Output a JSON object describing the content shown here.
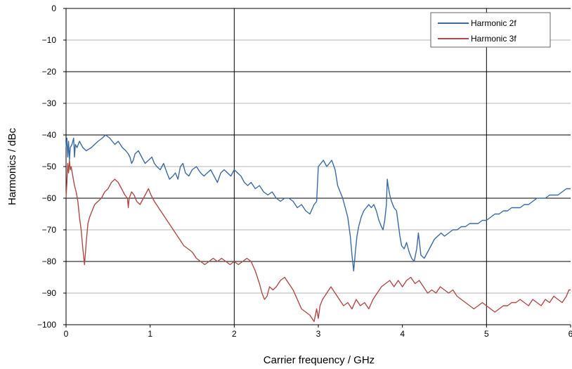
{
  "chart_data": {
    "type": "line",
    "title": "",
    "xlabel": "Carrier frequency / GHz",
    "ylabel": "Harmonics / dBc",
    "xlim": [
      0,
      6
    ],
    "ylim": [
      -100,
      0
    ],
    "x_ticks": [
      "0",
      "1",
      "2",
      "3",
      "4",
      "5",
      "6"
    ],
    "y_ticks": [
      "0",
      "−10",
      "−20",
      "−30",
      "−40",
      "−50",
      "−60",
      "−70",
      "−80",
      "−90",
      "−100"
    ],
    "grid": true,
    "legend_position": "top-right",
    "series": [
      {
        "name": "Harmonic 2f",
        "color": "#3a6aa6",
        "points": [
          [
            0.0,
            -44
          ],
          [
            0.01,
            -41
          ],
          [
            0.02,
            -47
          ],
          [
            0.03,
            -42
          ],
          [
            0.04,
            -48
          ],
          [
            0.05,
            -44
          ],
          [
            0.07,
            -43
          ],
          [
            0.09,
            -41
          ],
          [
            0.1,
            -47
          ],
          [
            0.11,
            -43
          ],
          [
            0.13,
            -44
          ],
          [
            0.16,
            -42
          ],
          [
            0.2,
            -44
          ],
          [
            0.24,
            -45
          ],
          [
            0.3,
            -44
          ],
          [
            0.34,
            -43
          ],
          [
            0.38,
            -42
          ],
          [
            0.43,
            -41
          ],
          [
            0.47,
            -40
          ],
          [
            0.52,
            -41
          ],
          [
            0.58,
            -43
          ],
          [
            0.62,
            -42
          ],
          [
            0.67,
            -44
          ],
          [
            0.71,
            -45
          ],
          [
            0.74,
            -46
          ],
          [
            0.76,
            -47
          ],
          [
            0.78,
            -49
          ],
          [
            0.8,
            -48
          ],
          [
            0.82,
            -46
          ],
          [
            0.86,
            -45
          ],
          [
            0.9,
            -47
          ],
          [
            0.94,
            -49
          ],
          [
            0.98,
            -48
          ],
          [
            1.02,
            -47
          ],
          [
            1.05,
            -49
          ],
          [
            1.08,
            -50
          ],
          [
            1.12,
            -51
          ],
          [
            1.16,
            -49
          ],
          [
            1.2,
            -52
          ],
          [
            1.23,
            -54
          ],
          [
            1.27,
            -53
          ],
          [
            1.3,
            -52
          ],
          [
            1.33,
            -54
          ],
          [
            1.36,
            -50
          ],
          [
            1.39,
            -49
          ],
          [
            1.42,
            -52
          ],
          [
            1.46,
            -53
          ],
          [
            1.5,
            -51
          ],
          [
            1.55,
            -50
          ],
          [
            1.6,
            -52
          ],
          [
            1.64,
            -53
          ],
          [
            1.68,
            -52
          ],
          [
            1.72,
            -51
          ],
          [
            1.76,
            -53
          ],
          [
            1.8,
            -55
          ],
          [
            1.84,
            -52
          ],
          [
            1.88,
            -51
          ],
          [
            1.92,
            -52
          ],
          [
            1.96,
            -53
          ],
          [
            2.0,
            -51
          ],
          [
            2.04,
            -52
          ],
          [
            2.08,
            -53
          ],
          [
            2.12,
            -55
          ],
          [
            2.16,
            -56
          ],
          [
            2.2,
            -55
          ],
          [
            2.25,
            -57
          ],
          [
            2.3,
            -56
          ],
          [
            2.35,
            -58
          ],
          [
            2.4,
            -59
          ],
          [
            2.45,
            -58
          ],
          [
            2.5,
            -60
          ],
          [
            2.55,
            -61
          ],
          [
            2.6,
            -60
          ],
          [
            2.65,
            -60
          ],
          [
            2.7,
            -61
          ],
          [
            2.75,
            -63
          ],
          [
            2.8,
            -62
          ],
          [
            2.85,
            -64
          ],
          [
            2.9,
            -65
          ],
          [
            2.95,
            -62
          ],
          [
            2.98,
            -61
          ],
          [
            3.0,
            -50
          ],
          [
            3.03,
            -49
          ],
          [
            3.06,
            -48
          ],
          [
            3.1,
            -50
          ],
          [
            3.13,
            -49
          ],
          [
            3.16,
            -48
          ],
          [
            3.2,
            -51
          ],
          [
            3.23,
            -56
          ],
          [
            3.26,
            -58
          ],
          [
            3.29,
            -60
          ],
          [
            3.32,
            -63
          ],
          [
            3.35,
            -66
          ],
          [
            3.38,
            -72
          ],
          [
            3.4,
            -78
          ],
          [
            3.42,
            -83
          ],
          [
            3.44,
            -77
          ],
          [
            3.46,
            -72
          ],
          [
            3.48,
            -69
          ],
          [
            3.51,
            -66
          ],
          [
            3.54,
            -64
          ],
          [
            3.57,
            -63
          ],
          [
            3.6,
            -62
          ],
          [
            3.63,
            -63
          ],
          [
            3.66,
            -62
          ],
          [
            3.69,
            -64
          ],
          [
            3.72,
            -67
          ],
          [
            3.75,
            -69
          ],
          [
            3.77,
            -70
          ],
          [
            3.79,
            -67
          ],
          [
            3.81,
            -62
          ],
          [
            3.82,
            -54
          ],
          [
            3.83,
            -56
          ],
          [
            3.85,
            -59
          ],
          [
            3.87,
            -61
          ],
          [
            3.9,
            -63
          ],
          [
            3.93,
            -64
          ],
          [
            3.95,
            -68
          ],
          [
            3.97,
            -72
          ],
          [
            3.99,
            -75
          ],
          [
            4.02,
            -76
          ],
          [
            4.05,
            -74
          ],
          [
            4.08,
            -77
          ],
          [
            4.11,
            -79
          ],
          [
            4.14,
            -80
          ],
          [
            4.17,
            -76
          ],
          [
            4.19,
            -71
          ],
          [
            4.22,
            -78
          ],
          [
            4.26,
            -79
          ],
          [
            4.3,
            -77
          ],
          [
            4.34,
            -75
          ],
          [
            4.38,
            -73
          ],
          [
            4.42,
            -72
          ],
          [
            4.46,
            -71
          ],
          [
            4.5,
            -72
          ],
          [
            4.55,
            -71
          ],
          [
            4.6,
            -70
          ],
          [
            4.65,
            -70
          ],
          [
            4.7,
            -69
          ],
          [
            4.75,
            -69
          ],
          [
            4.8,
            -68
          ],
          [
            4.85,
            -68
          ],
          [
            4.9,
            -68
          ],
          [
            4.95,
            -67
          ],
          [
            5.0,
            -67
          ],
          [
            5.05,
            -66
          ],
          [
            5.1,
            -65
          ],
          [
            5.15,
            -65
          ],
          [
            5.2,
            -64
          ],
          [
            5.25,
            -64
          ],
          [
            5.3,
            -63
          ],
          [
            5.35,
            -63
          ],
          [
            5.4,
            -63
          ],
          [
            5.45,
            -62
          ],
          [
            5.5,
            -62
          ],
          [
            5.55,
            -61
          ],
          [
            5.6,
            -60
          ],
          [
            5.65,
            -60
          ],
          [
            5.7,
            -60
          ],
          [
            5.75,
            -59
          ],
          [
            5.8,
            -59
          ],
          [
            5.85,
            -59
          ],
          [
            5.9,
            -58
          ],
          [
            5.95,
            -57
          ],
          [
            6.0,
            -57
          ]
        ]
      },
      {
        "name": "Harmonic 3f",
        "color": "#b04a46",
        "points": [
          [
            0.0,
            -60
          ],
          [
            0.01,
            -55
          ],
          [
            0.02,
            -49
          ],
          [
            0.03,
            -52
          ],
          [
            0.04,
            -48
          ],
          [
            0.05,
            -51
          ],
          [
            0.06,
            -50
          ],
          [
            0.08,
            -53
          ],
          [
            0.1,
            -56
          ],
          [
            0.12,
            -58
          ],
          [
            0.14,
            -61
          ],
          [
            0.16,
            -66
          ],
          [
            0.18,
            -70
          ],
          [
            0.2,
            -76
          ],
          [
            0.22,
            -81
          ],
          [
            0.24,
            -74
          ],
          [
            0.26,
            -68
          ],
          [
            0.28,
            -66
          ],
          [
            0.31,
            -64
          ],
          [
            0.34,
            -62
          ],
          [
            0.38,
            -61
          ],
          [
            0.42,
            -60
          ],
          [
            0.46,
            -58
          ],
          [
            0.5,
            -57
          ],
          [
            0.54,
            -55
          ],
          [
            0.58,
            -54
          ],
          [
            0.62,
            -55
          ],
          [
            0.66,
            -57
          ],
          [
            0.7,
            -59
          ],
          [
            0.73,
            -60
          ],
          [
            0.74,
            -63
          ],
          [
            0.75,
            -60
          ],
          [
            0.78,
            -58
          ],
          [
            0.81,
            -59
          ],
          [
            0.84,
            -61
          ],
          [
            0.88,
            -62
          ],
          [
            0.92,
            -60
          ],
          [
            0.96,
            -58
          ],
          [
            0.98,
            -57
          ],
          [
            1.01,
            -59
          ],
          [
            1.05,
            -61
          ],
          [
            1.1,
            -63
          ],
          [
            1.15,
            -65
          ],
          [
            1.2,
            -67
          ],
          [
            1.25,
            -69
          ],
          [
            1.3,
            -71
          ],
          [
            1.35,
            -73
          ],
          [
            1.4,
            -75
          ],
          [
            1.45,
            -76
          ],
          [
            1.5,
            -77
          ],
          [
            1.55,
            -79
          ],
          [
            1.6,
            -80
          ],
          [
            1.65,
            -81
          ],
          [
            1.7,
            -80
          ],
          [
            1.75,
            -79
          ],
          [
            1.8,
            -80
          ],
          [
            1.85,
            -79
          ],
          [
            1.9,
            -80
          ],
          [
            1.95,
            -81
          ],
          [
            2.0,
            -80
          ],
          [
            2.05,
            -81
          ],
          [
            2.1,
            -80
          ],
          [
            2.15,
            -79
          ],
          [
            2.2,
            -80
          ],
          [
            2.25,
            -83
          ],
          [
            2.3,
            -87
          ],
          [
            2.33,
            -90
          ],
          [
            2.36,
            -92
          ],
          [
            2.39,
            -91
          ],
          [
            2.42,
            -88
          ],
          [
            2.46,
            -89
          ],
          [
            2.5,
            -88
          ],
          [
            2.55,
            -86
          ],
          [
            2.6,
            -85
          ],
          [
            2.65,
            -87
          ],
          [
            2.7,
            -89
          ],
          [
            2.75,
            -92
          ],
          [
            2.8,
            -95
          ],
          [
            2.85,
            -96
          ],
          [
            2.9,
            -97
          ],
          [
            2.95,
            -99
          ],
          [
            2.98,
            -95
          ],
          [
            3.0,
            -98
          ],
          [
            3.02,
            -94
          ],
          [
            3.05,
            -92
          ],
          [
            3.1,
            -90
          ],
          [
            3.15,
            -88
          ],
          [
            3.2,
            -90
          ],
          [
            3.25,
            -92
          ],
          [
            3.3,
            -94
          ],
          [
            3.35,
            -93
          ],
          [
            3.4,
            -95
          ],
          [
            3.45,
            -92
          ],
          [
            3.5,
            -94
          ],
          [
            3.55,
            -93
          ],
          [
            3.6,
            -95
          ],
          [
            3.65,
            -92
          ],
          [
            3.7,
            -90
          ],
          [
            3.75,
            -88
          ],
          [
            3.8,
            -87
          ],
          [
            3.85,
            -86
          ],
          [
            3.9,
            -88
          ],
          [
            3.95,
            -86
          ],
          [
            4.0,
            -88
          ],
          [
            4.05,
            -86
          ],
          [
            4.1,
            -85
          ],
          [
            4.15,
            -87
          ],
          [
            4.2,
            -86
          ],
          [
            4.25,
            -88
          ],
          [
            4.3,
            -90
          ],
          [
            4.35,
            -89
          ],
          [
            4.4,
            -90
          ],
          [
            4.45,
            -88
          ],
          [
            4.5,
            -89
          ],
          [
            4.55,
            -90
          ],
          [
            4.6,
            -89
          ],
          [
            4.65,
            -91
          ],
          [
            4.7,
            -92
          ],
          [
            4.75,
            -93
          ],
          [
            4.8,
            -94
          ],
          [
            4.85,
            -95
          ],
          [
            4.9,
            -94
          ],
          [
            4.95,
            -93
          ],
          [
            5.0,
            -94
          ],
          [
            5.05,
            -95
          ],
          [
            5.1,
            -96
          ],
          [
            5.15,
            -95
          ],
          [
            5.2,
            -94
          ],
          [
            5.25,
            -94
          ],
          [
            5.3,
            -93
          ],
          [
            5.35,
            -93
          ],
          [
            5.4,
            -92
          ],
          [
            5.45,
            -93
          ],
          [
            5.5,
            -94
          ],
          [
            5.55,
            -92
          ],
          [
            5.6,
            -93
          ],
          [
            5.65,
            -94
          ],
          [
            5.7,
            -92
          ],
          [
            5.75,
            -93
          ],
          [
            5.8,
            -91
          ],
          [
            5.85,
            -92
          ],
          [
            5.9,
            -93
          ],
          [
            5.95,
            -91
          ],
          [
            5.98,
            -89
          ],
          [
            6.0,
            -89
          ]
        ]
      }
    ]
  }
}
